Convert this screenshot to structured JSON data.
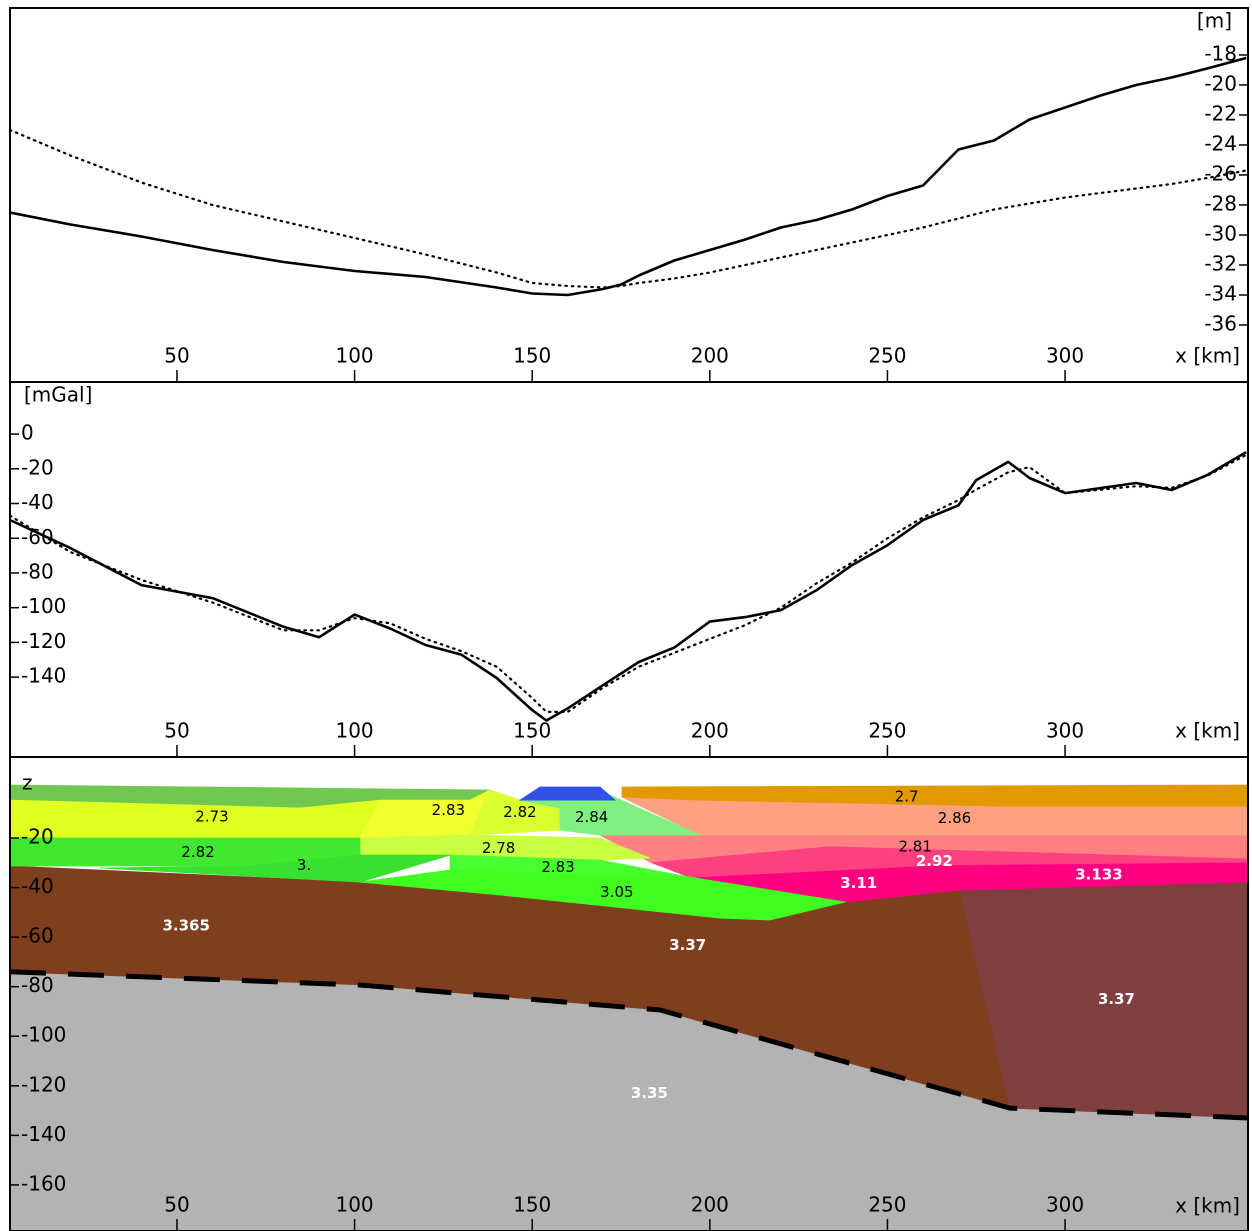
{
  "chart_data": [
    {
      "type": "line",
      "y_label": "[m]",
      "x_label": "x [km]",
      "y_axis_side": "right",
      "xlim": [
        3,
        351.5
      ],
      "xticks": [
        50,
        100,
        150,
        200,
        250,
        300
      ],
      "ylim": [
        -39.8,
        -14.87
      ],
      "yticks": [
        -18,
        -20,
        -22,
        -24,
        -26,
        -28,
        -30,
        -32,
        -34,
        -36
      ],
      "x": [
        3,
        20,
        40,
        60,
        80,
        100,
        120,
        140,
        150,
        160,
        170,
        175,
        180,
        190,
        200,
        210,
        220,
        230,
        240,
        250,
        260,
        270,
        280,
        290,
        300,
        310,
        320,
        330,
        340,
        351
      ],
      "series": [
        {
          "color": "#000000",
          "style": "solid",
          "values": [
            -28.5,
            -29.3,
            -30.1,
            -31.0,
            -31.8,
            -32.4,
            -32.8,
            -33.5,
            -33.9,
            -34.0,
            -33.6,
            -33.3,
            -32.7,
            -31.7,
            -31.0,
            -30.3,
            -29.5,
            -29.0,
            -28.3,
            -27.4,
            -26.7,
            -24.3,
            -23.7,
            -22.3,
            -21.5,
            -20.7,
            -20.0,
            -19.5,
            -18.9,
            -18.2
          ]
        },
        {
          "color": "#000000",
          "style": "dotted",
          "values": [
            -23.0,
            -24.7,
            -26.5,
            -28.0,
            -29.1,
            -30.2,
            -31.3,
            -32.5,
            -33.2,
            -33.4,
            -33.5,
            -33.4,
            -33.2,
            -32.9,
            -32.5,
            -32.0,
            -31.5,
            -31.0,
            -30.5,
            -30.0,
            -29.5,
            -28.9,
            -28.3,
            -27.9,
            -27.5,
            -27.2,
            -26.9,
            -26.6,
            -26.2,
            -25.7
          ]
        }
      ]
    },
    {
      "type": "line",
      "y_label": "[mGal]",
      "x_label": "x [km]",
      "y_axis_side": "left",
      "xlim": [
        3,
        351.5
      ],
      "xticks": [
        50,
        100,
        150,
        200,
        250,
        300
      ],
      "ylim": [
        -186,
        30
      ],
      "yticks": [
        0,
        -20,
        -40,
        -60,
        -80,
        -100,
        -120,
        -140
      ],
      "x": [
        3,
        20,
        40,
        60,
        80,
        90,
        100,
        110,
        120,
        130,
        140,
        150,
        154,
        160,
        170,
        180,
        190,
        200,
        210,
        220,
        230,
        240,
        250,
        260,
        270,
        275,
        284,
        290,
        300,
        320,
        330,
        340,
        351
      ],
      "series": [
        {
          "color": "#000000",
          "style": "solid",
          "values": [
            -49.5,
            -65.7,
            -87,
            -94.5,
            -111,
            -117,
            -104,
            -112,
            -121.5,
            -127,
            -140.5,
            -159,
            -165,
            -158,
            -144.6,
            -131.3,
            -123,
            -108,
            -105.4,
            -101.4,
            -90,
            -75.5,
            -64,
            -49.5,
            -41,
            -26.5,
            -16,
            -25.3,
            -34,
            -28.2,
            -32.2,
            -23.6,
            -10.4
          ]
        },
        {
          "color": "#000000",
          "style": "dotted",
          "values": [
            -47,
            -68,
            -84,
            -97,
            -113,
            -113,
            -106,
            -109,
            -118,
            -125,
            -134,
            -152,
            -160,
            -160,
            -146,
            -134,
            -126,
            -118,
            -110,
            -100,
            -86,
            -74,
            -60,
            -48,
            -38,
            -32,
            -22,
            -19,
            -34,
            -30,
            -31,
            -24,
            -12
          ]
        }
      ]
    },
    {
      "type": "section",
      "y_label": "z",
      "x_label": "x [km]",
      "y_axis_side": "left",
      "xlim": [
        3,
        351.5
      ],
      "xticks": [
        50,
        100,
        150,
        200,
        250,
        300
      ],
      "ylim": [
        -178.6,
        12.7
      ],
      "yticks": [
        -20,
        -40,
        -60,
        -80,
        -100,
        -120,
        -140,
        -160
      ],
      "boundary_style": "dashed",
      "bodies": [
        {
          "label": "3.35",
          "color": "#b3b3b3",
          "x": [
            3,
            101.5,
            186,
            284.5,
            351.5,
            351.5,
            3
          ],
          "z": [
            -74,
            -79.3,
            -89.4,
            -129,
            -133,
            -178.6,
            -178.6
          ]
        },
        {
          "label": "3.365",
          "color": "#7f3f1f",
          "x": [
            3,
            101.5,
            102.9,
            3
          ],
          "z": [
            -31.3,
            -37.8,
            -79.3,
            -74
          ]
        },
        {
          "label": "3.37",
          "color": "#7f3f1f",
          "x": [
            101.5,
            140.9,
            202.9,
            216.9,
            238.1,
            270.4,
            284.5,
            186,
            102.9
          ],
          "z": [
            -37.8,
            -43,
            -52.3,
            -53.1,
            -45.8,
            -41,
            -129,
            -89.4,
            -79.3
          ]
        },
        {
          "label": "3.37",
          "color": "#7f3f3f",
          "x": [
            270.4,
            351.5,
            351.5,
            284.5
          ],
          "z": [
            -41,
            -37.8,
            -133,
            -129
          ]
        },
        {
          "label": "3.133",
          "color": "#ff0080",
          "x": [
            264.8,
            351.5,
            351.5,
            270.4
          ],
          "z": [
            -30.9,
            -29.7,
            -37.8,
            -41
          ]
        },
        {
          "label": "3.11",
          "color": "#ff0080",
          "x": [
            194.4,
            264.8,
            270.4,
            238.1
          ],
          "z": [
            -35.8,
            -30.9,
            -41,
            -45.8
          ]
        },
        {
          "label": "2.92",
          "color": "#ff4080",
          "x": [
            183.2,
            233.8,
            351.5,
            351.5,
            264.8,
            194.4
          ],
          "z": [
            -29.7,
            -23.2,
            -28.1,
            -29.7,
            -30.9,
            -35.8
          ]
        },
        {
          "label": "2.81",
          "color": "#ff8080",
          "x": [
            169.1,
            351.5,
            351.5,
            233.8,
            183.2
          ],
          "z": [
            -18.8,
            -18.8,
            -28.1,
            -23.2,
            -29.7
          ]
        },
        {
          "label": "2.86",
          "color": "#ffa080",
          "x": [
            175.3,
            351.5,
            351.5,
            197.2
          ],
          "z": [
            -3.5,
            -7.1,
            -18.8,
            -18.8
          ]
        },
        {
          "label": "2.7",
          "color": "#e09a00",
          "x": [
            175.3,
            351.5,
            351.5,
            281.7,
            197.2,
            175.3
          ],
          "z": [
            0.6,
            1.4,
            -7.1,
            -7.1,
            -4.7,
            -3.5
          ]
        },
        {
          "color": "#70c850",
          "x": [
            3,
            138.1,
            132.5,
            84.6,
            3
          ],
          "z": [
            1.4,
            -0.6,
            -4.7,
            -7.9,
            -4.7
          ]
        },
        {
          "label": "2.73",
          "color": "#e0ff20",
          "x": [
            3,
            84.6,
            107.2,
            101.5,
            3
          ],
          "z": [
            -4.7,
            -7.9,
            -4.7,
            -20,
            -20
          ]
        },
        {
          "label": "2.83",
          "color": "#f0ff30",
          "x": [
            107.2,
            132.5,
            138.1,
            146.6,
            132.5,
            101.5
          ],
          "z": [
            -4.7,
            -4.7,
            -0.6,
            -4.7,
            -18.8,
            -20
          ]
        },
        {
          "label": "2.82",
          "color": "#d8ff30",
          "x": [
            138.1,
            146.6,
            157.8,
            157.8,
            132.5
          ],
          "z": [
            -0.6,
            -4.7,
            -7.9,
            -16.8,
            -18.8
          ]
        },
        {
          "label": "2.84",
          "color": "#80f080",
          "x": [
            146.6,
            171.9,
            197.2,
            169.1,
            157.8,
            157.8
          ],
          "z": [
            -4.7,
            -2.7,
            -18.8,
            -18.8,
            -16.8,
            -7.9
          ]
        },
        {
          "label": "2.78",
          "color": "#c8ff40",
          "x": [
            101.5,
            132.5,
            169.1,
            183.2,
            169.1,
            126.9,
            101.5
          ],
          "z": [
            -20,
            -18.8,
            -20,
            -28.1,
            -28.9,
            -26.9,
            -26.9
          ]
        },
        {
          "label": "2.82",
          "color": "#40e830",
          "x": [
            3,
            101.5,
            101.5,
            70.6,
            3
          ],
          "z": [
            -20,
            -20,
            -26.9,
            -31.3,
            -31.3
          ]
        },
        {
          "label": "3.",
          "color": "#38e030",
          "x": [
            70.6,
            101.5,
            126.9,
            101.5,
            28.3
          ],
          "z": [
            -31.3,
            -26.9,
            -26.9,
            -37.8,
            -32.1
          ]
        },
        {
          "label": "2.83",
          "color": "#48ff30",
          "x": [
            126.9,
            169.1,
            194.4,
            169.1,
            126.9
          ],
          "z": [
            -26.9,
            -28.9,
            -35.8,
            -34.9,
            -32.9
          ]
        },
        {
          "label": "3.05",
          "color": "#40ff20",
          "x": [
            101.5,
            126.9,
            169.1,
            194.4,
            238.1,
            216.9,
            202.9,
            140.9
          ],
          "z": [
            -37.8,
            -32.9,
            -34.9,
            -35.8,
            -45.8,
            -53.1,
            -52.3,
            -43
          ]
        },
        {
          "color": "#3050e8",
          "x": [
            146.6,
            152.2,
            169.1,
            173.3
          ],
          "z": [
            -4.7,
            0.6,
            0.6,
            -4.7
          ]
        }
      ]
    }
  ]
}
